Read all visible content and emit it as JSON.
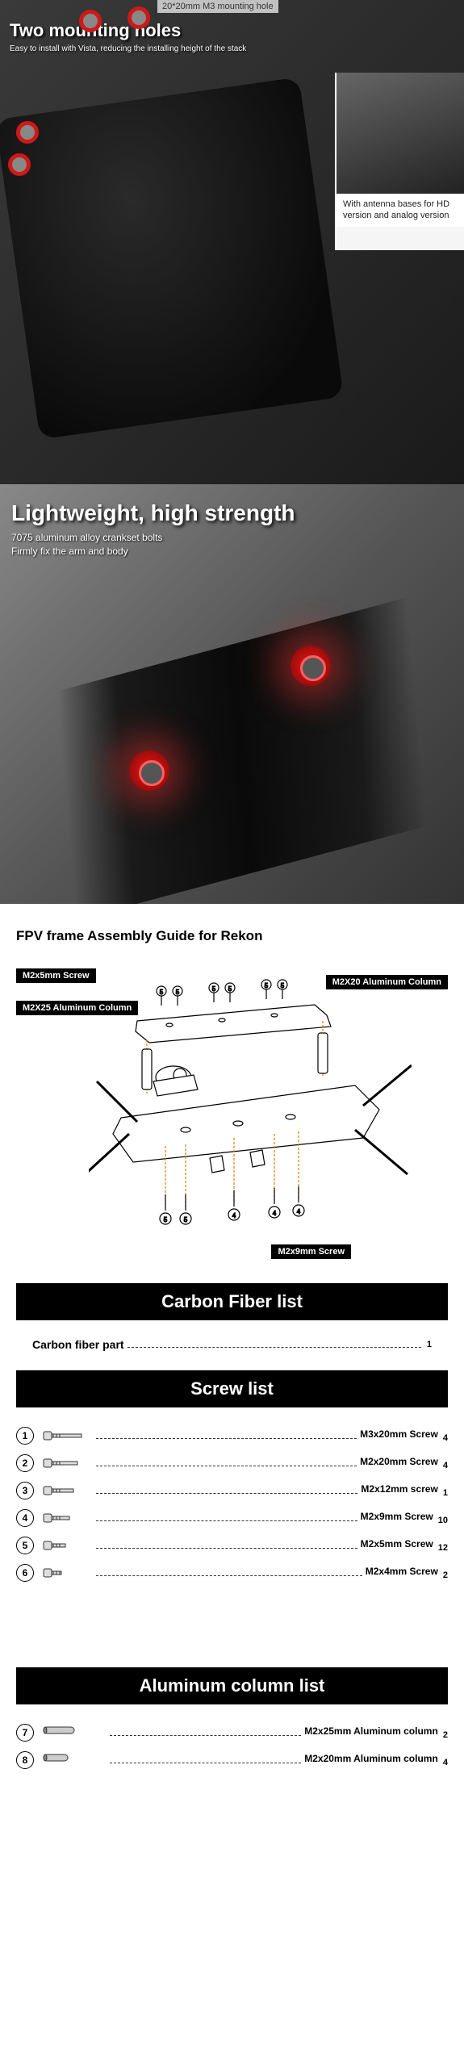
{
  "section1": {
    "top_callout": "20*20mm M3 mounting hole",
    "title": "Two mounting holes",
    "subtitle": "Easy to install with Vista, reducing the installing height of the stack",
    "inset_caption": "With antenna bases for HD version and analog version"
  },
  "section2": {
    "title": "Lightweight, high strength",
    "sub1": "7075 aluminum alloy crankset bolts",
    "sub2": "Firmly fix the arm and body"
  },
  "guide": {
    "title": "FPV frame Assembly Guide for Rekon",
    "labels": {
      "l1": "M2x5mm Screw",
      "l2": "M2X25 Aluminum Column",
      "l3": "M2X20 Aluminum Column",
      "l4": "M2x9mm Screw"
    }
  },
  "carbon": {
    "header": "Carbon Fiber list",
    "item": "Carbon fiber part",
    "qty": "1"
  },
  "screws": {
    "header": "Screw  list",
    "items": [
      {
        "num": "1",
        "label": "M3x20mm Screw",
        "qty": "4"
      },
      {
        "num": "2",
        "label": "M2x20mm Screw",
        "qty": "4"
      },
      {
        "num": "3",
        "label": "M2x12mm screw",
        "qty": "1"
      },
      {
        "num": "4",
        "label": "M2x9mm Screw",
        "qty": "10"
      },
      {
        "num": "5",
        "label": "M2x5mm Screw",
        "qty": "12"
      },
      {
        "num": "6",
        "label": "M2x4mm Screw",
        "qty": "2"
      }
    ]
  },
  "columns": {
    "header": "Aluminum column list",
    "items": [
      {
        "num": "7",
        "label": "M2x25mm Aluminum column",
        "qty": "2"
      },
      {
        "num": "8",
        "label": "M2x20mm Aluminum column",
        "qty": "4"
      }
    ]
  }
}
